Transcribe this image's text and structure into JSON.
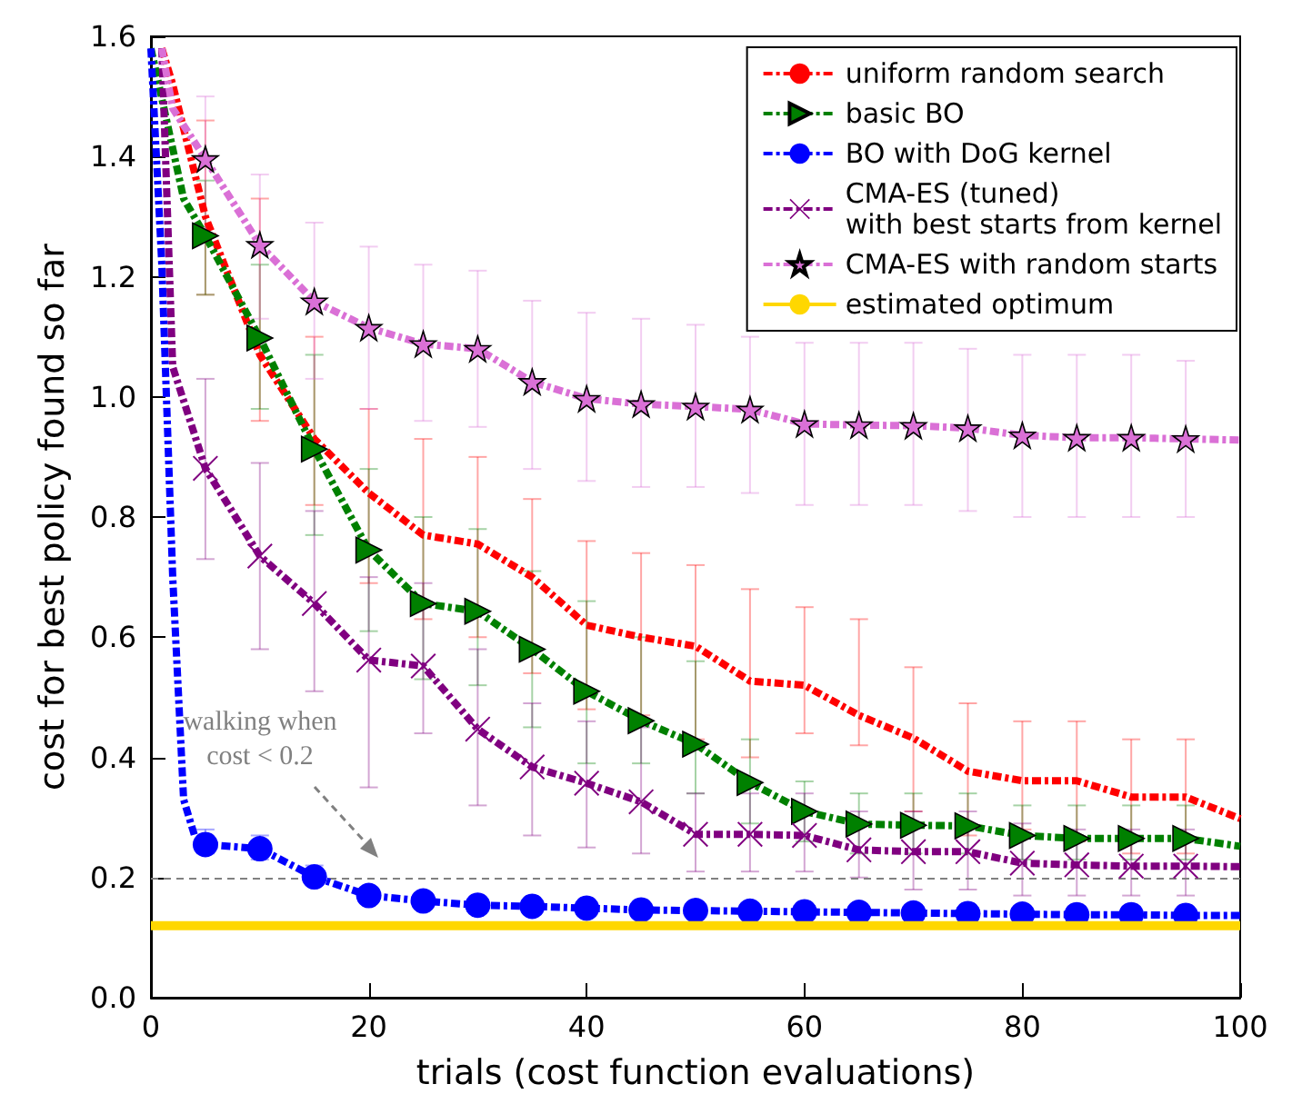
{
  "chart_data": {
    "type": "line",
    "xlabel": "trials (cost function evaluations)",
    "ylabel": "cost for best policy found so far",
    "x": [
      1,
      2,
      5,
      10,
      15,
      20,
      25,
      30,
      35,
      40,
      45,
      50,
      55,
      60,
      65,
      70,
      75,
      80,
      85,
      90,
      95,
      100
    ],
    "xlim": [
      0,
      100
    ],
    "xticks": [
      0,
      20,
      40,
      60,
      80,
      100
    ],
    "ylim": [
      0,
      1.6
    ],
    "yticks": [
      {
        "value": 0,
        "label": "0.0"
      },
      0.2,
      0.4,
      0.6,
      0.8,
      {
        "value": 1,
        "label": "1.0"
      },
      1.2,
      1.4,
      1.6
    ],
    "grid": false,
    "legend": "top right",
    "line_style": "dashed",
    "series": [
      {
        "name": "uniform random search",
        "color": "#ff0000",
        "marker": "none",
        "values": [
          1.58,
          1.52,
          1.3,
          1.07,
          0.93,
          0.84,
          0.77,
          0.755,
          0.7,
          0.62,
          0.6,
          0.585,
          0.527,
          0.52,
          0.47,
          0.432,
          0.377,
          0.361,
          0.361,
          0.334,
          0.334,
          0.298
        ],
        "errors": [
          null,
          null,
          [
            1.17,
            1.46
          ],
          [
            0.96,
            1.33
          ],
          [
            0.82,
            1.1
          ],
          [
            0.69,
            0.98
          ],
          [
            0.63,
            0.93
          ],
          [
            0.6,
            0.9
          ],
          [
            0.54,
            0.83
          ],
          [
            0.48,
            0.76
          ],
          [
            0.47,
            0.74
          ],
          [
            0.43,
            0.72
          ],
          [
            0.4,
            0.68
          ],
          [
            0.44,
            0.65
          ],
          [
            0.42,
            0.63
          ],
          [
            0.31,
            0.55
          ],
          [
            0.27,
            0.49
          ],
          [
            0.28,
            0.46
          ],
          [
            0.26,
            0.46
          ],
          [
            0.24,
            0.43
          ],
          [
            0.24,
            0.43
          ],
          null
        ]
      },
      {
        "name": "basic BO",
        "color": "#008000",
        "marker": "triangle",
        "x": [
          0,
          3,
          5,
          10,
          15,
          20,
          25,
          30,
          35,
          40,
          45,
          50,
          55,
          60,
          65,
          70,
          75,
          80,
          85,
          90,
          95,
          100
        ],
        "values": [
          1.58,
          1.33,
          1.268,
          1.098,
          0.913,
          0.745,
          0.656,
          0.643,
          0.58,
          0.51,
          0.461,
          0.422,
          0.358,
          0.31,
          0.289,
          0.287,
          0.286,
          0.27,
          0.265,
          0.265,
          0.265,
          0.252
        ],
        "errors": [
          null,
          null,
          [
            1.17,
            1.36
          ],
          [
            0.98,
            1.22
          ],
          [
            0.77,
            1.07
          ],
          [
            0.61,
            0.88
          ],
          [
            0.53,
            0.8
          ],
          [
            0.52,
            0.78
          ],
          [
            0.45,
            0.71
          ],
          [
            0.39,
            0.66
          ],
          [
            0.39,
            0.6
          ],
          [
            0.34,
            0.56
          ],
          [
            0.29,
            0.43
          ],
          [
            0.26,
            0.36
          ],
          [
            0.24,
            0.34
          ],
          [
            0.24,
            0.34
          ],
          [
            0.24,
            0.34
          ],
          [
            0.23,
            0.32
          ],
          [
            0.23,
            0.32
          ],
          [
            0.23,
            0.32
          ],
          [
            0.23,
            0.32
          ],
          null
        ]
      },
      {
        "name": "BO with DoG kernel",
        "color": "#0000ff",
        "marker": "circle",
        "x": [
          0,
          1,
          2,
          3,
          4,
          5,
          10,
          15,
          20,
          25,
          30,
          35,
          40,
          45,
          50,
          55,
          60,
          65,
          70,
          75,
          80,
          85,
          90,
          95,
          100
        ],
        "values": [
          1.58,
          1.22,
          0.7,
          0.33,
          0.27,
          0.255,
          0.248,
          0.201,
          0.17,
          0.161,
          0.154,
          0.152,
          0.149,
          0.146,
          0.145,
          0.144,
          0.143,
          0.142,
          0.141,
          0.14,
          0.139,
          0.138,
          0.138,
          0.137,
          0.137
        ],
        "errors": [
          null,
          null,
          null,
          null,
          null,
          [
            0.24,
            0.28
          ],
          [
            0.23,
            0.27
          ],
          [
            0.19,
            0.22
          ],
          [
            0.16,
            0.18
          ],
          null,
          null,
          null,
          null,
          null,
          null,
          null,
          null,
          null,
          null,
          null,
          null,
          null,
          null,
          null,
          null
        ]
      },
      {
        "name": "CMA-ES (tuned)\nwith best starts from kernel",
        "color": "#800080",
        "marker": "cross",
        "values": [
          1.58,
          1.05,
          0.881,
          0.735,
          0.656,
          0.562,
          0.552,
          0.447,
          0.384,
          0.357,
          0.326,
          0.272,
          0.272,
          0.27,
          0.246,
          0.243,
          0.243,
          0.224,
          0.221,
          0.219,
          0.219,
          0.218
        ],
        "errors": [
          null,
          null,
          [
            0.73,
            1.03
          ],
          [
            0.58,
            0.89
          ],
          [
            0.51,
            0.81
          ],
          [
            0.35,
            0.7
          ],
          [
            0.44,
            0.69
          ],
          [
            0.32,
            0.58
          ],
          [
            0.27,
            0.49
          ],
          [
            0.25,
            0.46
          ],
          [
            0.24,
            0.45
          ],
          [
            0.21,
            0.34
          ],
          [
            0.21,
            0.34
          ],
          [
            0.21,
            0.34
          ],
          [
            0.2,
            0.31
          ],
          [
            0.18,
            0.31
          ],
          [
            0.18,
            0.31
          ],
          [
            0.17,
            0.29
          ],
          [
            0.17,
            0.28
          ],
          [
            0.17,
            0.28
          ],
          [
            0.17,
            0.28
          ],
          null
        ]
      },
      {
        "name": "CMA-ES with random starts",
        "color": "#da70d6",
        "marker": "star",
        "values": [
          1.58,
          1.48,
          1.396,
          1.253,
          1.159,
          1.115,
          1.088,
          1.08,
          1.025,
          0.997,
          0.988,
          0.984,
          0.979,
          0.955,
          0.953,
          0.952,
          0.948,
          0.936,
          0.932,
          0.932,
          0.93,
          0.928
        ],
        "errors": [
          null,
          null,
          [
            1.28,
            1.5
          ],
          [
            1.13,
            1.37
          ],
          [
            1.03,
            1.29
          ],
          [
            0.98,
            1.25
          ],
          [
            0.96,
            1.22
          ],
          [
            0.95,
            1.21
          ],
          [
            0.88,
            1.16
          ],
          [
            0.86,
            1.14
          ],
          [
            0.85,
            1.13
          ],
          [
            0.85,
            1.12
          ],
          [
            0.84,
            1.1
          ],
          [
            0.82,
            1.09
          ],
          [
            0.82,
            1.09
          ],
          [
            0.82,
            1.09
          ],
          [
            0.81,
            1.08
          ],
          [
            0.8,
            1.07
          ],
          [
            0.8,
            1.07
          ],
          [
            0.8,
            1.07
          ],
          [
            0.8,
            1.06
          ],
          null
        ]
      },
      {
        "name": "estimated optimum",
        "color": "#ffd700",
        "marker": "none",
        "line_style": "solid",
        "x": [
          0,
          100
        ],
        "values": [
          0.12,
          0.12
        ]
      }
    ],
    "ref_lines": [
      {
        "axis": "y",
        "value": 0.2,
        "color": "#808080",
        "line_style": "dashed"
      }
    ],
    "annotations": [
      "walking when\ncost < 0.2"
    ]
  }
}
